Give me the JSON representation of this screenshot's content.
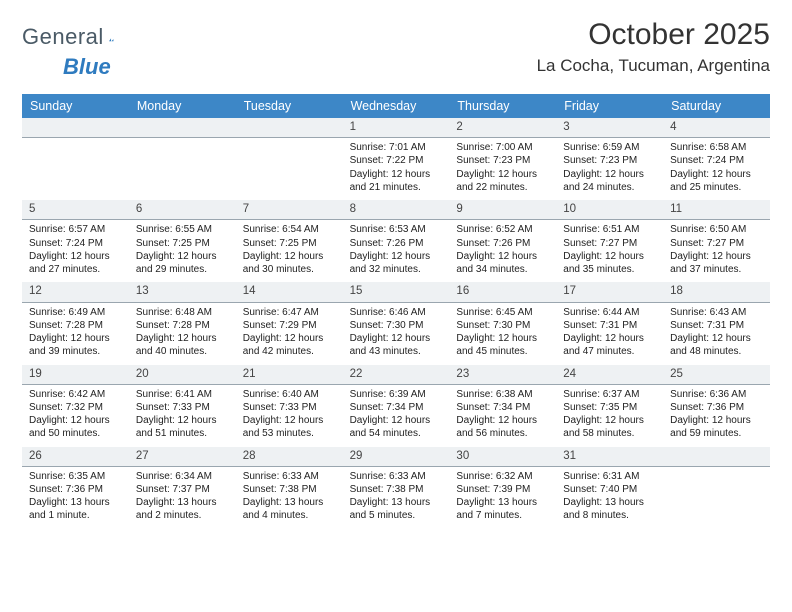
{
  "logo": {
    "text1": "General",
    "text2": "Blue"
  },
  "header": {
    "month": "October 2025",
    "location": "La Cocha, Tucuman, Argentina"
  },
  "colors": {
    "header_bg": "#3d87c7",
    "header_fg": "#ffffff",
    "daynum_bg": "#eef1f3",
    "border": "#9aa6af"
  },
  "day_names": [
    "Sunday",
    "Monday",
    "Tuesday",
    "Wednesday",
    "Thursday",
    "Friday",
    "Saturday"
  ],
  "weeks": [
    [
      {
        "n": "",
        "lines": [
          "",
          "",
          "",
          ""
        ]
      },
      {
        "n": "",
        "lines": [
          "",
          "",
          "",
          ""
        ]
      },
      {
        "n": "",
        "lines": [
          "",
          "",
          "",
          ""
        ]
      },
      {
        "n": "1",
        "lines": [
          "Sunrise: 7:01 AM",
          "Sunset: 7:22 PM",
          "Daylight: 12 hours",
          "and 21 minutes."
        ]
      },
      {
        "n": "2",
        "lines": [
          "Sunrise: 7:00 AM",
          "Sunset: 7:23 PM",
          "Daylight: 12 hours",
          "and 22 minutes."
        ]
      },
      {
        "n": "3",
        "lines": [
          "Sunrise: 6:59 AM",
          "Sunset: 7:23 PM",
          "Daylight: 12 hours",
          "and 24 minutes."
        ]
      },
      {
        "n": "4",
        "lines": [
          "Sunrise: 6:58 AM",
          "Sunset: 7:24 PM",
          "Daylight: 12 hours",
          "and 25 minutes."
        ]
      }
    ],
    [
      {
        "n": "5",
        "lines": [
          "Sunrise: 6:57 AM",
          "Sunset: 7:24 PM",
          "Daylight: 12 hours",
          "and 27 minutes."
        ]
      },
      {
        "n": "6",
        "lines": [
          "Sunrise: 6:55 AM",
          "Sunset: 7:25 PM",
          "Daylight: 12 hours",
          "and 29 minutes."
        ]
      },
      {
        "n": "7",
        "lines": [
          "Sunrise: 6:54 AM",
          "Sunset: 7:25 PM",
          "Daylight: 12 hours",
          "and 30 minutes."
        ]
      },
      {
        "n": "8",
        "lines": [
          "Sunrise: 6:53 AM",
          "Sunset: 7:26 PM",
          "Daylight: 12 hours",
          "and 32 minutes."
        ]
      },
      {
        "n": "9",
        "lines": [
          "Sunrise: 6:52 AM",
          "Sunset: 7:26 PM",
          "Daylight: 12 hours",
          "and 34 minutes."
        ]
      },
      {
        "n": "10",
        "lines": [
          "Sunrise: 6:51 AM",
          "Sunset: 7:27 PM",
          "Daylight: 12 hours",
          "and 35 minutes."
        ]
      },
      {
        "n": "11",
        "lines": [
          "Sunrise: 6:50 AM",
          "Sunset: 7:27 PM",
          "Daylight: 12 hours",
          "and 37 minutes."
        ]
      }
    ],
    [
      {
        "n": "12",
        "lines": [
          "Sunrise: 6:49 AM",
          "Sunset: 7:28 PM",
          "Daylight: 12 hours",
          "and 39 minutes."
        ]
      },
      {
        "n": "13",
        "lines": [
          "Sunrise: 6:48 AM",
          "Sunset: 7:28 PM",
          "Daylight: 12 hours",
          "and 40 minutes."
        ]
      },
      {
        "n": "14",
        "lines": [
          "Sunrise: 6:47 AM",
          "Sunset: 7:29 PM",
          "Daylight: 12 hours",
          "and 42 minutes."
        ]
      },
      {
        "n": "15",
        "lines": [
          "Sunrise: 6:46 AM",
          "Sunset: 7:30 PM",
          "Daylight: 12 hours",
          "and 43 minutes."
        ]
      },
      {
        "n": "16",
        "lines": [
          "Sunrise: 6:45 AM",
          "Sunset: 7:30 PM",
          "Daylight: 12 hours",
          "and 45 minutes."
        ]
      },
      {
        "n": "17",
        "lines": [
          "Sunrise: 6:44 AM",
          "Sunset: 7:31 PM",
          "Daylight: 12 hours",
          "and 47 minutes."
        ]
      },
      {
        "n": "18",
        "lines": [
          "Sunrise: 6:43 AM",
          "Sunset: 7:31 PM",
          "Daylight: 12 hours",
          "and 48 minutes."
        ]
      }
    ],
    [
      {
        "n": "19",
        "lines": [
          "Sunrise: 6:42 AM",
          "Sunset: 7:32 PM",
          "Daylight: 12 hours",
          "and 50 minutes."
        ]
      },
      {
        "n": "20",
        "lines": [
          "Sunrise: 6:41 AM",
          "Sunset: 7:33 PM",
          "Daylight: 12 hours",
          "and 51 minutes."
        ]
      },
      {
        "n": "21",
        "lines": [
          "Sunrise: 6:40 AM",
          "Sunset: 7:33 PM",
          "Daylight: 12 hours",
          "and 53 minutes."
        ]
      },
      {
        "n": "22",
        "lines": [
          "Sunrise: 6:39 AM",
          "Sunset: 7:34 PM",
          "Daylight: 12 hours",
          "and 54 minutes."
        ]
      },
      {
        "n": "23",
        "lines": [
          "Sunrise: 6:38 AM",
          "Sunset: 7:34 PM",
          "Daylight: 12 hours",
          "and 56 minutes."
        ]
      },
      {
        "n": "24",
        "lines": [
          "Sunrise: 6:37 AM",
          "Sunset: 7:35 PM",
          "Daylight: 12 hours",
          "and 58 minutes."
        ]
      },
      {
        "n": "25",
        "lines": [
          "Sunrise: 6:36 AM",
          "Sunset: 7:36 PM",
          "Daylight: 12 hours",
          "and 59 minutes."
        ]
      }
    ],
    [
      {
        "n": "26",
        "lines": [
          "Sunrise: 6:35 AM",
          "Sunset: 7:36 PM",
          "Daylight: 13 hours",
          "and 1 minute."
        ]
      },
      {
        "n": "27",
        "lines": [
          "Sunrise: 6:34 AM",
          "Sunset: 7:37 PM",
          "Daylight: 13 hours",
          "and 2 minutes."
        ]
      },
      {
        "n": "28",
        "lines": [
          "Sunrise: 6:33 AM",
          "Sunset: 7:38 PM",
          "Daylight: 13 hours",
          "and 4 minutes."
        ]
      },
      {
        "n": "29",
        "lines": [
          "Sunrise: 6:33 AM",
          "Sunset: 7:38 PM",
          "Daylight: 13 hours",
          "and 5 minutes."
        ]
      },
      {
        "n": "30",
        "lines": [
          "Sunrise: 6:32 AM",
          "Sunset: 7:39 PM",
          "Daylight: 13 hours",
          "and 7 minutes."
        ]
      },
      {
        "n": "31",
        "lines": [
          "Sunrise: 6:31 AM",
          "Sunset: 7:40 PM",
          "Daylight: 13 hours",
          "and 8 minutes."
        ]
      },
      {
        "n": "",
        "lines": [
          "",
          "",
          "",
          ""
        ]
      }
    ]
  ]
}
